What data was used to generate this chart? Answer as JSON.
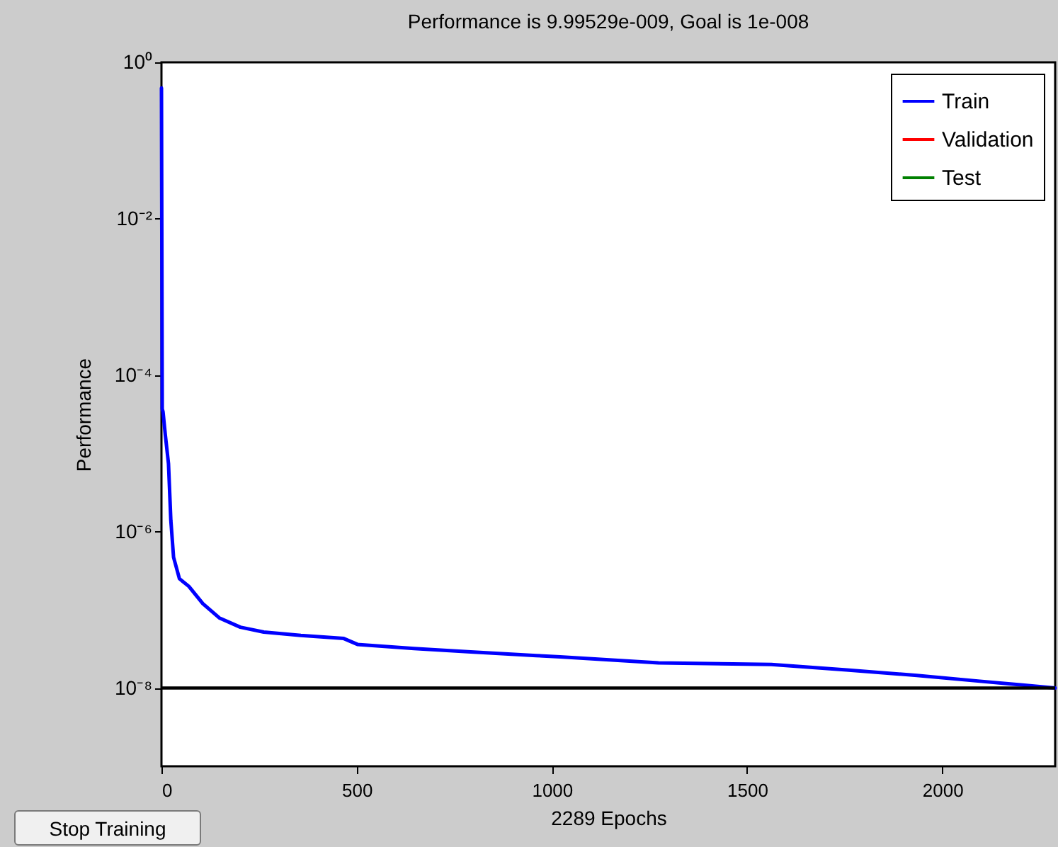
{
  "chart_data": {
    "type": "line",
    "title": "Performance is 9.99529e-009, Goal is 1e-008",
    "xlabel": "2289 Epochs",
    "ylabel": "Performance",
    "annotations": [
      "Stop Training"
    ],
    "log": "y",
    "xlim": [
      0,
      2289
    ],
    "xticks": [
      0,
      500,
      1000,
      1500,
      2000
    ],
    "ylim": [
      1e-09,
      1
    ],
    "yticks": [
      {
        "value": 1,
        "label": "10⁰"
      },
      {
        "value": 0.01,
        "label": "10⁻²"
      },
      {
        "value": 0.0001,
        "label": "10⁻⁴"
      },
      {
        "value": 1e-06,
        "label": "10⁻⁶"
      },
      {
        "value": 1e-08,
        "label": "10⁻⁸"
      }
    ],
    "legend": "top right",
    "ref_lines": [
      {
        "axis": "y",
        "value": 1e-08,
        "color": "#000000"
      }
    ],
    "series": [
      {
        "name": "Train",
        "color": "#0000ff",
        "x": [
          0,
          2,
          4,
          10,
          18,
          24,
          31,
          46,
          70,
          106,
          148,
          202,
          262,
          357,
          467,
          503,
          647,
          792,
          960,
          1021,
          1273,
          1562,
          1755,
          1935,
          2091,
          2200,
          2289
        ],
        "values": [
          0.47,
          3.7e-05,
          3.4e-05,
          1.7e-05,
          7.4e-06,
          1.4e-06,
          4.7e-07,
          2.5e-07,
          2e-07,
          1.2e-07,
          7.9e-08,
          6e-08,
          5.2e-08,
          4.7e-08,
          4.3e-08,
          3.6e-08,
          3.2e-08,
          2.9e-08,
          2.6e-08,
          2.5e-08,
          2.1e-08,
          2e-08,
          1.7e-08,
          1.45e-08,
          1.23e-08,
          1.1e-08,
          1e-08
        ]
      },
      {
        "name": "Validation",
        "color": "#ff0000"
      },
      {
        "name": "Test",
        "color": "#008000"
      }
    ]
  }
}
